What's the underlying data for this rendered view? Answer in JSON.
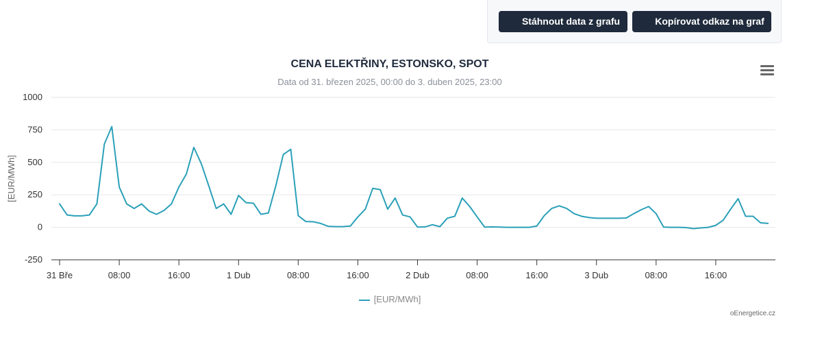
{
  "buttons": {
    "download_label": "Stáhnout data z grafu",
    "copy_label": "Kopírovat odkaz na graf"
  },
  "credit": "oEnergetice.cz",
  "colors": {
    "series": "#2aa0b8",
    "button_bg": "#1f2a3c",
    "grid": "#e6e6e6"
  },
  "chart_data": {
    "type": "line",
    "title": "CENA ELEKTŘINY, ESTONSKO, SPOT",
    "subtitle": "Data od 31. březen 2025, 00:00 do 3. duben 2025, 23:00",
    "ylabel": "[EUR/MWh]",
    "xlabel": "",
    "ylim": [
      -250,
      1000
    ],
    "yticks": [
      1000,
      750,
      500,
      250,
      0,
      -250
    ],
    "xtick_labels": [
      {
        "hour": 0,
        "label": "31 Bře"
      },
      {
        "hour": 8,
        "label": "08:00"
      },
      {
        "hour": 16,
        "label": "16:00"
      },
      {
        "hour": 24,
        "label": "1 Dub"
      },
      {
        "hour": 32,
        "label": "08:00"
      },
      {
        "hour": 40,
        "label": "16:00"
      },
      {
        "hour": 48,
        "label": "2 Dub"
      },
      {
        "hour": 56,
        "label": "08:00"
      },
      {
        "hour": 64,
        "label": "16:00"
      },
      {
        "hour": 72,
        "label": "3 Dub"
      },
      {
        "hour": 80,
        "label": "08:00"
      },
      {
        "hour": 88,
        "label": "16:00"
      }
    ],
    "grid": true,
    "legend_position": "bottom-center",
    "series": [
      {
        "name": "[EUR/MWh]",
        "x_unit": "hour since 31 Bře 00:00",
        "values": [
          180,
          95,
          88,
          88,
          95,
          180,
          640,
          775,
          310,
          180,
          145,
          180,
          125,
          100,
          130,
          180,
          310,
          410,
          615,
          490,
          320,
          145,
          180,
          100,
          245,
          190,
          185,
          100,
          110,
          320,
          560,
          600,
          90,
          45,
          43,
          30,
          8,
          5,
          5,
          10,
          80,
          140,
          300,
          290,
          140,
          225,
          95,
          80,
          2,
          3,
          20,
          5,
          70,
          85,
          225,
          160,
          80,
          2,
          3,
          2,
          0,
          0,
          0,
          0,
          10,
          90,
          145,
          165,
          145,
          105,
          85,
          75,
          70,
          70,
          70,
          70,
          72,
          105,
          135,
          160,
          105,
          2,
          0,
          0,
          -2,
          -10,
          -5,
          0,
          15,
          55,
          140,
          220,
          85,
          85,
          35,
          30
        ]
      }
    ]
  }
}
